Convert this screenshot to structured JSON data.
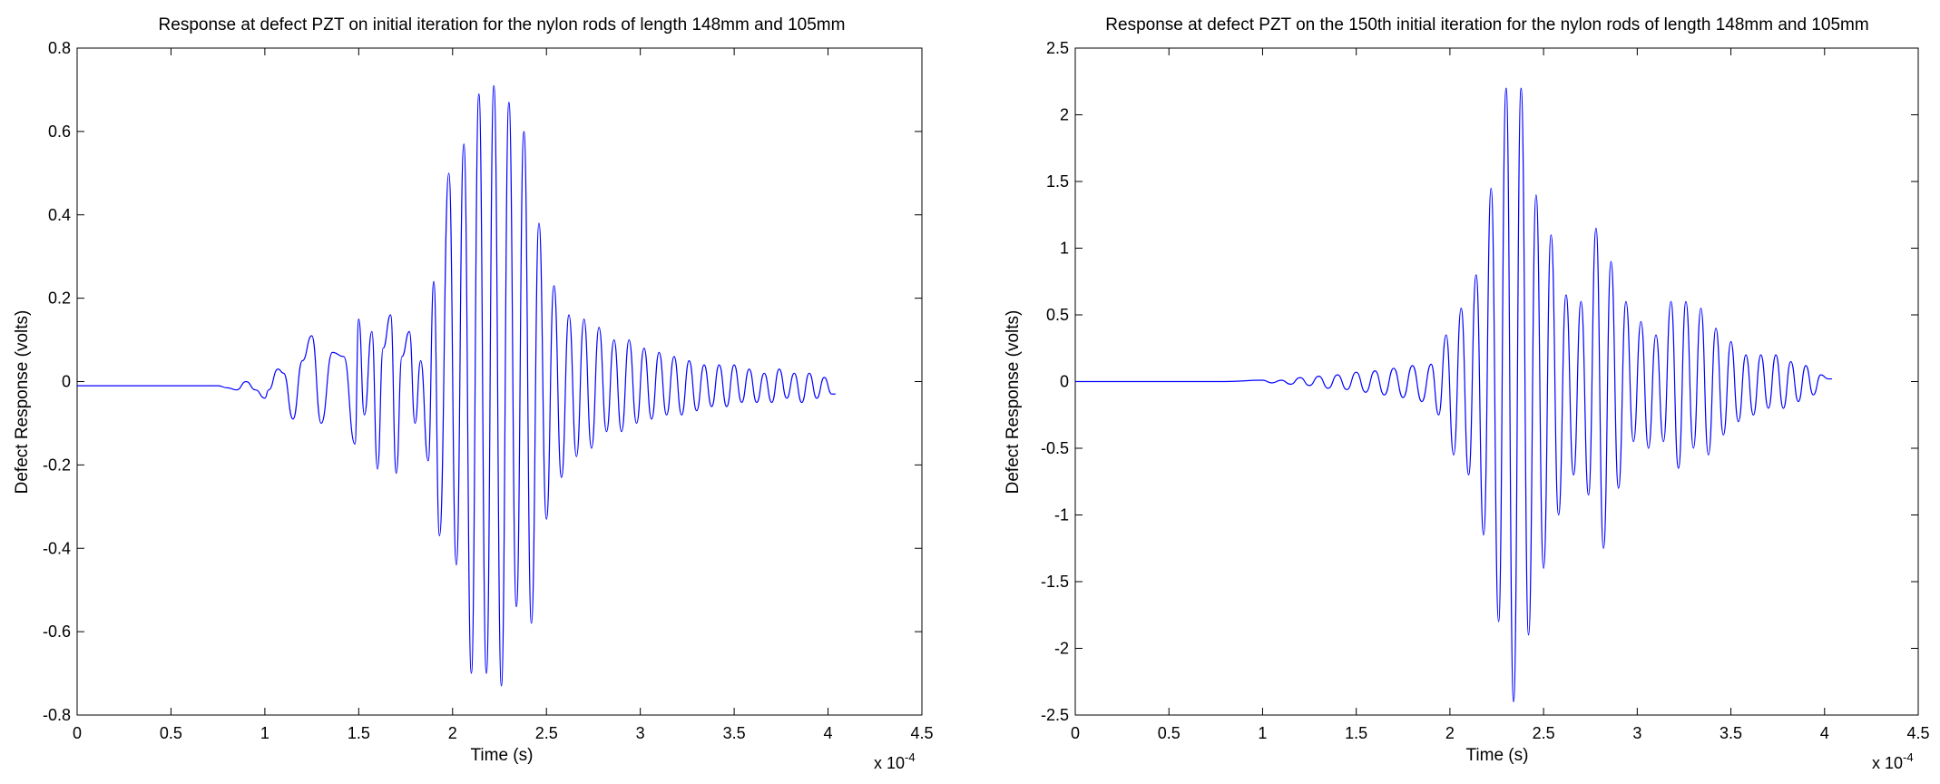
{
  "figure": {
    "background": "#ffffff",
    "line_color": "#0000ff",
    "axes_color": "#000000"
  },
  "chart_data": [
    {
      "type": "line",
      "title": "Response at defect PZT on initial iteration for the nylon rods of length 148mm and 105mm",
      "xlabel": "Time (s)",
      "ylabel": "Defect Response (volts)",
      "x_exponent_label": "x 10",
      "x_exponent_power": "-4",
      "x_scale": 0.0001,
      "xlim": [
        0,
        4.5
      ],
      "ylim": [
        -0.8,
        0.8
      ],
      "xticks": [
        0,
        0.5,
        1,
        1.5,
        2,
        2.5,
        3,
        3.5,
        4,
        4.5
      ],
      "xtick_labels": [
        "0",
        "0.5",
        "1",
        "1.5",
        "2",
        "2.5",
        "3",
        "3.5",
        "4",
        "4.5"
      ],
      "yticks": [
        -0.8,
        -0.6,
        -0.4,
        -0.2,
        0,
        0.2,
        0.4,
        0.6,
        0.8
      ],
      "ytick_labels": [
        "-0.8",
        "-0.6",
        "-0.4",
        "-0.2",
        "0",
        "0.2",
        "0.4",
        "0.6",
        "0.8"
      ],
      "grid": false,
      "series": [
        {
          "x": [
            0,
            0.2,
            0.4,
            0.6,
            0.75,
            0.8,
            0.85,
            0.9,
            0.95,
            1.0,
            1.02,
            1.07,
            1.1,
            1.15,
            1.2,
            1.25,
            1.3,
            1.36,
            1.42,
            1.48,
            1.5,
            1.53,
            1.57,
            1.6,
            1.63,
            1.67,
            1.7,
            1.73,
            1.77,
            1.8,
            1.83,
            1.87,
            1.9,
            1.93,
            1.98,
            2.02,
            2.06,
            2.1,
            2.14,
            2.18,
            2.22,
            2.26,
            2.3,
            2.34,
            2.38,
            2.42,
            2.46,
            2.5,
            2.54,
            2.58,
            2.62,
            2.66,
            2.7,
            2.74,
            2.78,
            2.82,
            2.86,
            2.9,
            2.94,
            2.98,
            3.02,
            3.06,
            3.1,
            3.14,
            3.18,
            3.22,
            3.26,
            3.3,
            3.34,
            3.38,
            3.42,
            3.46,
            3.5,
            3.54,
            3.58,
            3.62,
            3.66,
            3.7,
            3.74,
            3.78,
            3.82,
            3.86,
            3.9,
            3.94,
            3.98,
            4.02,
            4.04
          ],
          "y": [
            -0.01,
            -0.01,
            -0.01,
            -0.01,
            -0.01,
            -0.015,
            -0.02,
            0.0,
            -0.02,
            -0.04,
            -0.02,
            0.03,
            0.02,
            -0.09,
            0.05,
            0.11,
            -0.1,
            0.07,
            0.06,
            -0.15,
            0.15,
            -0.08,
            0.12,
            -0.21,
            0.08,
            0.16,
            -0.22,
            0.06,
            0.12,
            -0.1,
            0.05,
            -0.19,
            0.24,
            -0.37,
            0.5,
            -0.44,
            0.57,
            -0.7,
            0.69,
            -0.7,
            0.71,
            -0.73,
            0.67,
            -0.54,
            0.6,
            -0.58,
            0.38,
            -0.33,
            0.23,
            -0.23,
            0.16,
            -0.18,
            0.15,
            -0.16,
            0.13,
            -0.12,
            0.1,
            -0.12,
            0.1,
            -0.1,
            0.08,
            -0.09,
            0.07,
            -0.08,
            0.06,
            -0.08,
            0.05,
            -0.07,
            0.04,
            -0.06,
            0.04,
            -0.06,
            0.04,
            -0.05,
            0.03,
            -0.05,
            0.02,
            -0.05,
            0.03,
            -0.04,
            0.02,
            -0.05,
            0.02,
            -0.04,
            0.01,
            -0.03,
            -0.03
          ]
        }
      ]
    },
    {
      "type": "line",
      "title": "Response at defect PZT on the 150th initial iteration for the nylon rods of length 148mm and 105mm",
      "xlabel": "Time (s)",
      "ylabel": "Defect Response (volts)",
      "x_exponent_label": "x 10",
      "x_exponent_power": "-4",
      "x_scale": 0.0001,
      "xlim": [
        0,
        4.5
      ],
      "ylim": [
        -2.5,
        2.5
      ],
      "xticks": [
        0,
        0.5,
        1,
        1.5,
        2,
        2.5,
        3,
        3.5,
        4,
        4.5
      ],
      "xtick_labels": [
        "0",
        "0.5",
        "1",
        "1.5",
        "2",
        "2.5",
        "3",
        "3.5",
        "4",
        "4.5"
      ],
      "yticks": [
        -2.5,
        -2,
        -1.5,
        -1,
        -0.5,
        0,
        0.5,
        1,
        1.5,
        2,
        2.5
      ],
      "ytick_labels": [
        "-2.5",
        "-2",
        "-1.5",
        "-1",
        "-0.5",
        "0",
        "0.5",
        "1",
        "1.5",
        "2",
        "2.5"
      ],
      "grid": false,
      "series": [
        {
          "x": [
            0,
            0.5,
            0.8,
            1.0,
            1.05,
            1.1,
            1.15,
            1.2,
            1.25,
            1.3,
            1.35,
            1.4,
            1.45,
            1.5,
            1.55,
            1.6,
            1.65,
            1.7,
            1.75,
            1.8,
            1.85,
            1.9,
            1.94,
            1.98,
            2.02,
            2.06,
            2.1,
            2.14,
            2.18,
            2.22,
            2.26,
            2.3,
            2.34,
            2.38,
            2.42,
            2.46,
            2.5,
            2.54,
            2.58,
            2.62,
            2.66,
            2.7,
            2.74,
            2.78,
            2.82,
            2.86,
            2.9,
            2.94,
            2.98,
            3.02,
            3.06,
            3.1,
            3.14,
            3.18,
            3.22,
            3.26,
            3.3,
            3.34,
            3.38,
            3.42,
            3.46,
            3.5,
            3.54,
            3.58,
            3.62,
            3.66,
            3.7,
            3.74,
            3.78,
            3.82,
            3.86,
            3.9,
            3.94,
            3.98,
            4.02,
            4.04
          ],
          "y": [
            0,
            0,
            0,
            0.01,
            -0.01,
            0.01,
            -0.02,
            0.03,
            -0.03,
            0.04,
            -0.05,
            0.05,
            -0.06,
            0.07,
            -0.08,
            0.08,
            -0.1,
            0.1,
            -0.12,
            0.12,
            -0.15,
            0.13,
            -0.25,
            0.35,
            -0.55,
            0.55,
            -0.7,
            0.8,
            -1.15,
            1.45,
            -1.8,
            2.2,
            -2.4,
            2.2,
            -1.9,
            1.4,
            -1.4,
            1.1,
            -1.0,
            0.65,
            -0.7,
            0.6,
            -0.85,
            1.15,
            -1.25,
            0.9,
            -0.8,
            0.6,
            -0.45,
            0.45,
            -0.5,
            0.35,
            -0.45,
            0.6,
            -0.65,
            0.6,
            -0.5,
            0.55,
            -0.55,
            0.4,
            -0.4,
            0.3,
            -0.3,
            0.2,
            -0.25,
            0.2,
            -0.2,
            0.2,
            -0.2,
            0.15,
            -0.15,
            0.12,
            -0.1,
            0.05,
            0.02,
            0.02
          ]
        }
      ]
    }
  ]
}
